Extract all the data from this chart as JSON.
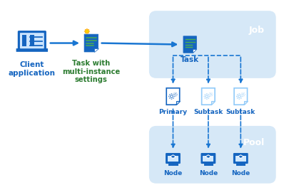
{
  "bg_color": "#ffffff",
  "light_blue_bg": "#d6e8f7",
  "blue_dark": "#1565c0",
  "blue_mid": "#2196f3",
  "blue_light": "#90caf9",
  "blue_arrow": "#1976d2",
  "green_text": "#2e7d32",
  "blue_text": "#1565c0",
  "white": "#ffffff",
  "labels": {
    "client": "Client\napplication",
    "job": "Job",
    "task": "Task",
    "primary": "Primary",
    "subtask1": "Subtask",
    "subtask2": "Subtask",
    "pool": "Pool",
    "node1": "Node",
    "node2": "Node",
    "node3": "Node"
  }
}
